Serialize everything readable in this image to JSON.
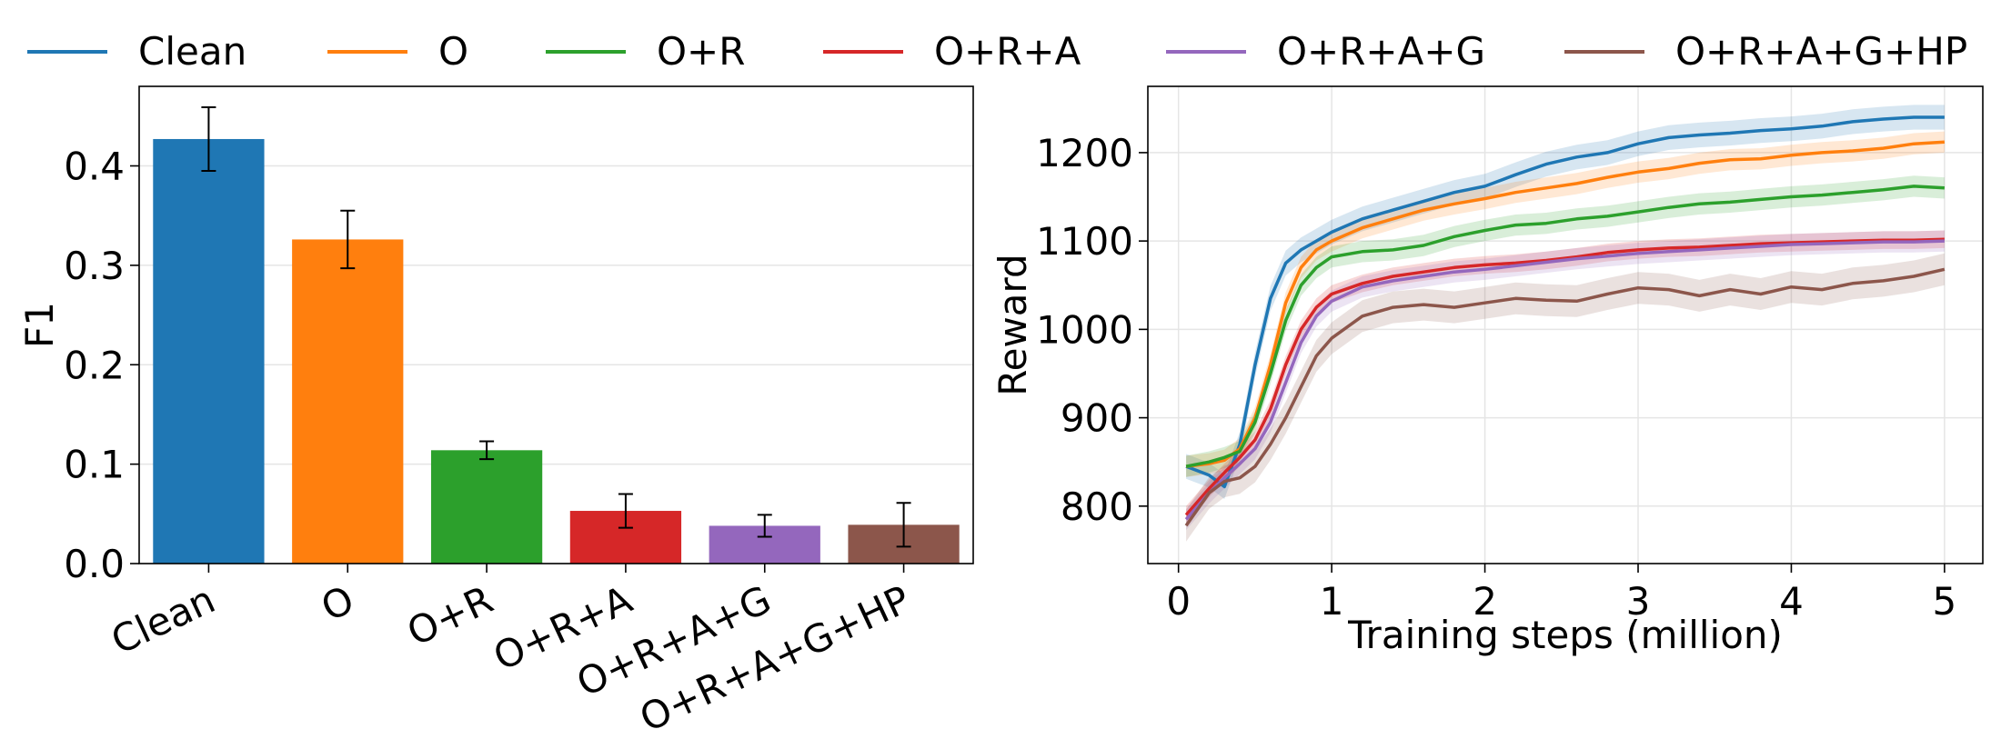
{
  "legend": [
    {
      "label": "Clean",
      "color": "#1f77b4"
    },
    {
      "label": "O",
      "color": "#ff7f0e"
    },
    {
      "label": "O+R",
      "color": "#2ca02c"
    },
    {
      "label": "O+R+A",
      "color": "#d62728"
    },
    {
      "label": "O+R+A+G",
      "color": "#9467bd"
    },
    {
      "label": "O+R+A+G+HP",
      "color": "#8c564b"
    }
  ],
  "chart_data": [
    {
      "type": "bar",
      "categories": [
        "Clean",
        "O",
        "O+R",
        "O+R+A",
        "O+R+A+G",
        "O+R+A+G+HP"
      ],
      "values": [
        0.427,
        0.326,
        0.114,
        0.053,
        0.038,
        0.039
      ],
      "error": [
        0.032,
        0.029,
        0.009,
        0.017,
        0.011,
        0.022
      ],
      "colors": [
        "#1f77b4",
        "#ff7f0e",
        "#2ca02c",
        "#d62728",
        "#9467bd",
        "#8c564b"
      ],
      "xlabel": "",
      "ylabel": "F1",
      "ylim": [
        0,
        0.48
      ],
      "yticks": [
        0.0,
        0.1,
        0.2,
        0.3,
        0.4
      ],
      "ytick_labels": [
        "0.0",
        "0.1",
        "0.2",
        "0.3",
        "0.4"
      ],
      "grid": "y"
    },
    {
      "type": "line",
      "xlabel": "Training steps (million)",
      "ylabel": "Reward",
      "xlim": [
        -0.2,
        5.25
      ],
      "ylim": [
        735,
        1275
      ],
      "xticks": [
        0,
        1,
        2,
        3,
        4,
        5
      ],
      "xtick_labels": [
        "0",
        "1",
        "2",
        "3",
        "4",
        "5"
      ],
      "yticks": [
        800,
        900,
        1000,
        1100,
        1200
      ],
      "ytick_labels": [
        "800",
        "900",
        "1000",
        "1100",
        "1200"
      ],
      "grid": true,
      "x": [
        0.05,
        0.2,
        0.3,
        0.4,
        0.5,
        0.6,
        0.7,
        0.8,
        0.9,
        1.0,
        1.2,
        1.4,
        1.6,
        1.8,
        2.0,
        2.2,
        2.4,
        2.6,
        2.8,
        3.0,
        3.2,
        3.4,
        3.6,
        3.8,
        4.0,
        4.2,
        4.4,
        4.6,
        4.8,
        5.0
      ],
      "series": [
        {
          "name": "Clean",
          "color": "#1f77b4",
          "band": 14,
          "values": [
            845,
            835,
            822,
            870,
            960,
            1035,
            1075,
            1090,
            1100,
            1110,
            1125,
            1135,
            1145,
            1155,
            1162,
            1175,
            1187,
            1195,
            1200,
            1210,
            1217,
            1220,
            1222,
            1225,
            1227,
            1230,
            1235,
            1238,
            1240,
            1240
          ]
        },
        {
          "name": "O",
          "color": "#ff7f0e",
          "band": 12,
          "values": [
            845,
            848,
            852,
            865,
            900,
            960,
            1030,
            1070,
            1090,
            1100,
            1115,
            1125,
            1135,
            1142,
            1148,
            1155,
            1160,
            1165,
            1172,
            1178,
            1182,
            1188,
            1192,
            1193,
            1197,
            1200,
            1202,
            1205,
            1210,
            1212
          ]
        },
        {
          "name": "O+R",
          "color": "#2ca02c",
          "band": 12,
          "values": [
            845,
            850,
            855,
            862,
            895,
            950,
            1010,
            1050,
            1070,
            1082,
            1088,
            1090,
            1095,
            1105,
            1112,
            1118,
            1120,
            1125,
            1128,
            1133,
            1138,
            1142,
            1144,
            1147,
            1150,
            1152,
            1155,
            1158,
            1162,
            1160
          ]
        },
        {
          "name": "O+R+A",
          "color": "#d62728",
          "band": 10,
          "values": [
            790,
            820,
            838,
            855,
            875,
            910,
            960,
            1000,
            1025,
            1040,
            1052,
            1060,
            1065,
            1070,
            1073,
            1075,
            1078,
            1082,
            1087,
            1090,
            1092,
            1093,
            1095,
            1097,
            1098,
            1099,
            1100,
            1101,
            1101,
            1102
          ]
        },
        {
          "name": "O+R+A+G",
          "color": "#9467bd",
          "band": 12,
          "values": [
            785,
            815,
            832,
            848,
            865,
            895,
            940,
            985,
            1015,
            1032,
            1048,
            1055,
            1060,
            1065,
            1068,
            1072,
            1076,
            1080,
            1083,
            1086,
            1088,
            1090,
            1092,
            1094,
            1096,
            1097,
            1098,
            1099,
            1099,
            1100
          ]
        },
        {
          "name": "O+R+A+G+HP",
          "color": "#8c564b",
          "band": 18,
          "values": [
            778,
            815,
            828,
            832,
            845,
            870,
            900,
            935,
            970,
            990,
            1015,
            1025,
            1028,
            1025,
            1030,
            1035,
            1033,
            1032,
            1040,
            1047,
            1045,
            1038,
            1045,
            1040,
            1048,
            1045,
            1052,
            1055,
            1060,
            1068
          ]
        }
      ]
    }
  ]
}
